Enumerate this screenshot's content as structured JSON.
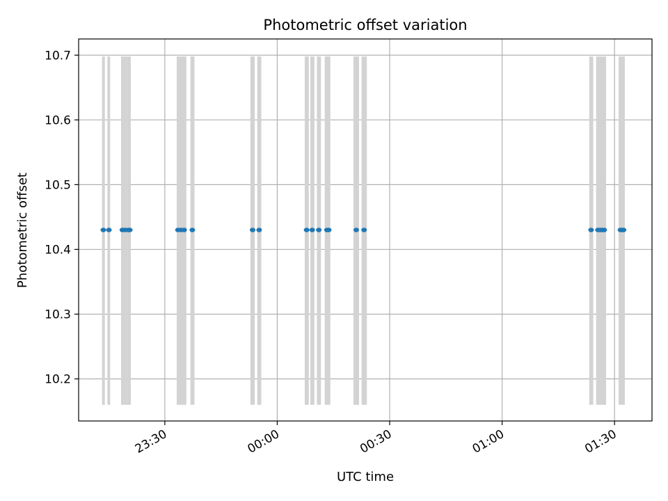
{
  "chart_data": {
    "type": "scatter",
    "title": "Photometric offset variation",
    "xlabel": "UTC time",
    "ylabel": "Photometric offset",
    "xlim": [
      "23:07:00",
      "01:40:00"
    ],
    "ylim": [
      10.135,
      10.725
    ],
    "x_ticks": [
      "23:30",
      "00:00",
      "00:30",
      "01:00",
      "01:30"
    ],
    "y_ticks": [
      10.2,
      10.3,
      10.4,
      10.5,
      10.6,
      10.7
    ],
    "grid": true,
    "point_color": "#1f77b4",
    "band_color": "#d3d3d3",
    "band_range": [
      10.16,
      10.698
    ],
    "exposure_bands": [
      {
        "start": "23:13:15",
        "end": "23:14:00"
      },
      {
        "start": "23:14:40",
        "end": "23:15:25"
      },
      {
        "start": "23:18:20",
        "end": "23:19:05"
      },
      {
        "start": "23:19:05",
        "end": "23:19:50"
      },
      {
        "start": "23:19:50",
        "end": "23:20:55"
      },
      {
        "start": "23:33:10",
        "end": "23:33:55"
      },
      {
        "start": "23:33:55",
        "end": "23:34:40"
      },
      {
        "start": "23:34:40",
        "end": "23:35:45"
      },
      {
        "start": "23:36:50",
        "end": "23:37:55"
      },
      {
        "start": "23:52:50",
        "end": "23:54:00"
      },
      {
        "start": "23:54:40",
        "end": "23:55:45"
      },
      {
        "start": "00:07:20",
        "end": "00:08:25"
      },
      {
        "start": "00:08:50",
        "end": "00:09:55"
      },
      {
        "start": "00:10:35",
        "end": "00:11:40"
      },
      {
        "start": "00:12:40",
        "end": "00:14:10"
      },
      {
        "start": "00:20:20",
        "end": "00:21:50"
      },
      {
        "start": "00:22:30",
        "end": "00:23:55"
      },
      {
        "start": "01:23:15",
        "end": "01:24:20"
      },
      {
        "start": "01:25:05",
        "end": "01:27:45"
      },
      {
        "start": "01:31:05",
        "end": "01:32:45"
      }
    ],
    "series": [
      {
        "x": [
          "23:13:35",
          "23:15:05",
          "23:18:40",
          "23:19:25",
          "23:20:15",
          "23:20:40",
          "23:33:30",
          "23:34:20",
          "23:35:10",
          "23:37:20",
          "23:53:25",
          "23:55:10",
          "00:07:50",
          "00:09:20",
          "00:11:05",
          "00:13:15",
          "00:13:45",
          "00:21:05",
          "00:23:10",
          "01:23:45",
          "01:25:35",
          "01:26:10",
          "01:26:50",
          "01:27:15",
          "01:31:35",
          "01:32:00",
          "01:32:25"
        ],
        "y": [
          10.43,
          10.43,
          10.43,
          10.43,
          10.43,
          10.43,
          10.43,
          10.43,
          10.43,
          10.43,
          10.43,
          10.43,
          10.43,
          10.43,
          10.43,
          10.43,
          10.43,
          10.43,
          10.43,
          10.43,
          10.43,
          10.43,
          10.43,
          10.43,
          10.43,
          10.43,
          10.43
        ]
      }
    ]
  }
}
